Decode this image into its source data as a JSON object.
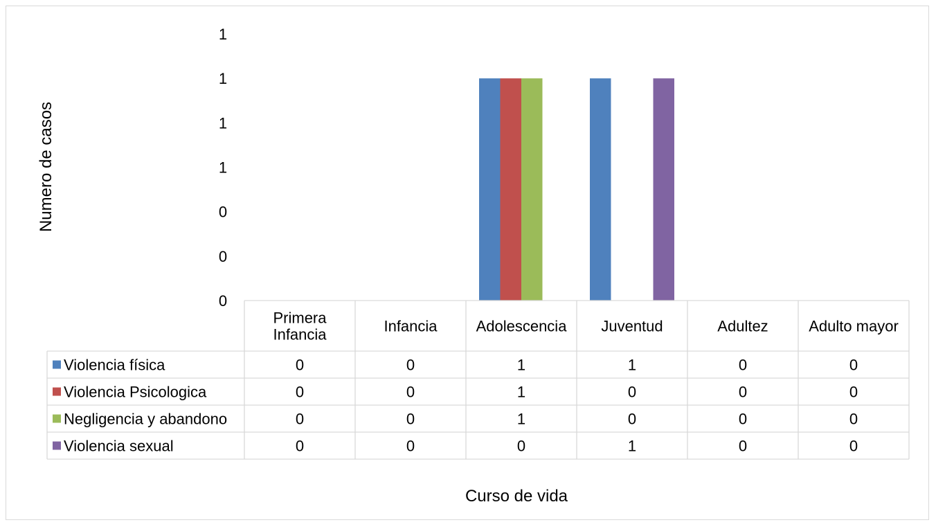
{
  "chart_data": {
    "type": "bar",
    "title": "",
    "xlabel": "Curso de vida",
    "ylabel": "Numero de casos",
    "categories": [
      [
        "Primera",
        "Infancia"
      ],
      [
        "Infancia"
      ],
      [
        "Adolescencia"
      ],
      [
        "Juventud"
      ],
      [
        "Adultez"
      ],
      [
        "Adulto mayor"
      ]
    ],
    "ytick_labels": [
      "0",
      "0",
      "0",
      "1",
      "1",
      "1",
      "1"
    ],
    "ylim": [
      0,
      1.2
    ],
    "grid": false,
    "legend": "data-table",
    "series": [
      {
        "name": "Violencia física",
        "color": "#4F81BD",
        "values": [
          0,
          0,
          1,
          1,
          0,
          0
        ]
      },
      {
        "name": "Violencia Psicologica",
        "color": "#C0504D",
        "values": [
          0,
          0,
          1,
          0,
          0,
          0
        ]
      },
      {
        "name": "Negligencia y abandono",
        "color": "#9BBB59",
        "values": [
          0,
          0,
          1,
          0,
          0,
          0
        ]
      },
      {
        "name": "Violencia sexual",
        "color": "#8064A2",
        "values": [
          0,
          0,
          0,
          1,
          0,
          0
        ]
      }
    ]
  }
}
